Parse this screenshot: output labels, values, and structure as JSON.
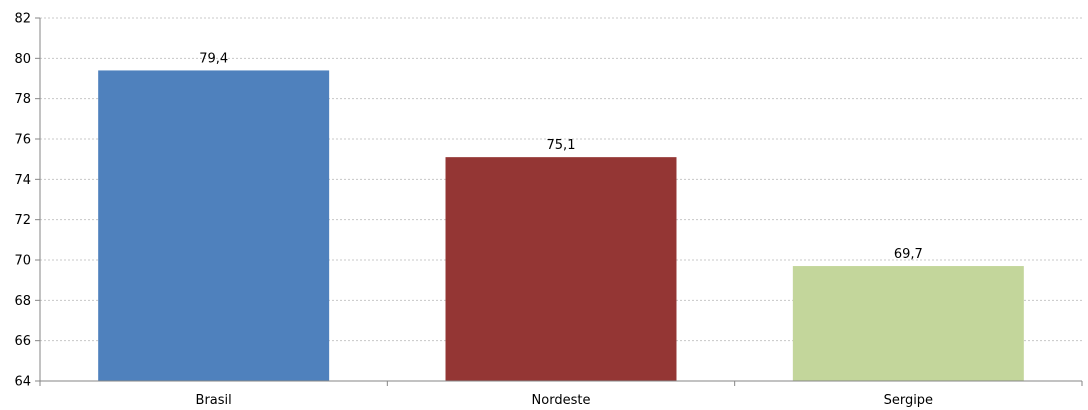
{
  "chart_data": {
    "type": "bar",
    "categories": [
      "Brasil",
      "Nordeste",
      "Sergipe"
    ],
    "values": [
      79.4,
      75.1,
      69.7
    ],
    "data_labels": [
      "79,4",
      "75,1",
      "69,7"
    ],
    "colors": [
      "#4f81bd",
      "#943634",
      "#c3d69b"
    ],
    "ylim": [
      64,
      82
    ],
    "yticks": [
      64,
      66,
      68,
      70,
      72,
      74,
      76,
      78,
      80,
      82
    ],
    "ytick_labels": [
      "64",
      "66",
      "68",
      "70",
      "72",
      "74",
      "76",
      "78",
      "80",
      "82"
    ],
    "title": "",
    "xlabel": "",
    "ylabel": "",
    "grid": true,
    "legend": "none"
  }
}
